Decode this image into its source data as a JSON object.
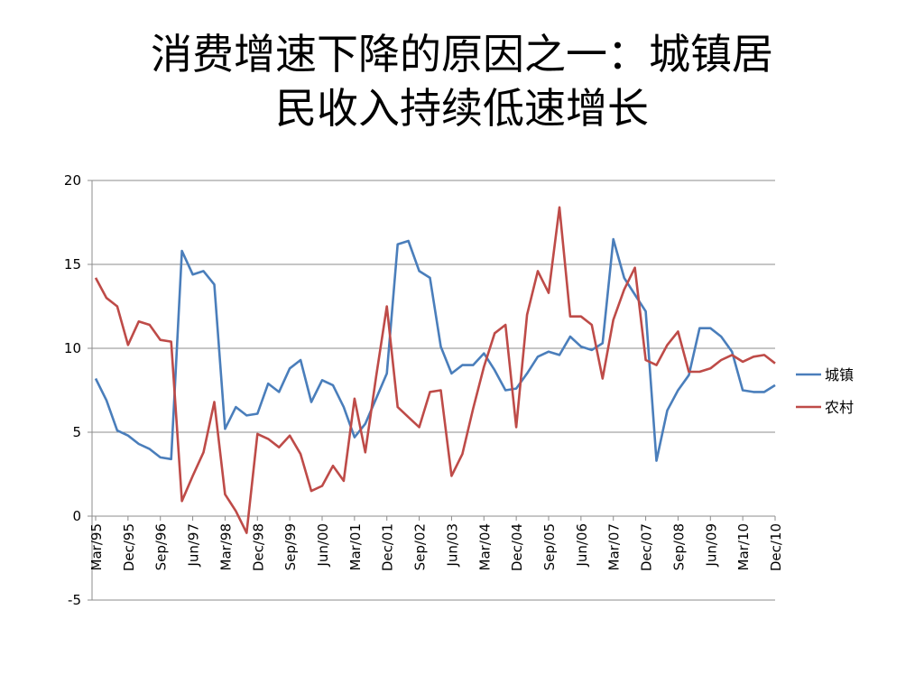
{
  "slide": {
    "title_line1": "消费增速下降的原因之一：城镇居",
    "title_line2": "民收入持续低速增长"
  },
  "chart_data": {
    "type": "line",
    "ylim": [
      -5,
      20
    ],
    "yticks": [
      -5,
      0,
      5,
      10,
      15,
      20
    ],
    "grid": true,
    "legend_position": "right",
    "x": [
      "Mar/95",
      "Jun/95",
      "Sep/95",
      "Dec/95",
      "Mar/96",
      "Jun/96",
      "Sep/96",
      "Dec/96",
      "Mar/97",
      "Jun/97",
      "Sep/97",
      "Dec/97",
      "Mar/98",
      "Jun/98",
      "Sep/98",
      "Dec/98",
      "Mar/99",
      "Jun/99",
      "Sep/99",
      "Dec/99",
      "Mar/00",
      "Jun/00",
      "Sep/00",
      "Dec/00",
      "Mar/01",
      "Jun/01",
      "Sep/01",
      "Dec/01",
      "Mar/02",
      "Jun/02",
      "Sep/02",
      "Dec/02",
      "Mar/03",
      "Jun/03",
      "Sep/03",
      "Dec/03",
      "Mar/04",
      "Jun/04",
      "Sep/04",
      "Dec/04",
      "Mar/05",
      "Jun/05",
      "Sep/05",
      "Dec/05",
      "Mar/06",
      "Jun/06",
      "Sep/06",
      "Dec/06",
      "Mar/07",
      "Jun/07",
      "Sep/07",
      "Dec/07",
      "Mar/08",
      "Jun/08",
      "Sep/08",
      "Dec/08",
      "Mar/09",
      "Jun/09",
      "Sep/09",
      "Dec/09",
      "Mar/10",
      "Jun/10",
      "Sep/10",
      "Dec/10"
    ],
    "x_tick_labels": [
      "Mar/95",
      "Dec/95",
      "Sep/96",
      "Jun/97",
      "Mar/98",
      "Dec/98",
      "Sep/99",
      "Jun/00",
      "Mar/01",
      "Dec/01",
      "Sep/02",
      "Jun/03",
      "Mar/04",
      "Dec/04",
      "Sep/05",
      "Jun/06",
      "Mar/07",
      "Dec/07",
      "Sep/08",
      "Jun/09",
      "Mar/10",
      "Dec/10"
    ],
    "series": [
      {
        "name": "城镇",
        "color": "#4a7ebb",
        "values": [
          8.2,
          6.9,
          5.1,
          4.8,
          4.3,
          4.0,
          3.5,
          3.4,
          15.8,
          14.4,
          14.6,
          13.8,
          5.2,
          6.5,
          6.0,
          6.1,
          7.9,
          7.4,
          8.8,
          9.3,
          6.8,
          8.1,
          7.8,
          6.5,
          4.7,
          5.5,
          7.0,
          8.5,
          16.2,
          16.4,
          14.6,
          14.2,
          10.1,
          8.5,
          9.0,
          9.0,
          9.7,
          8.7,
          7.5,
          7.6,
          8.5,
          9.5,
          9.8,
          9.6,
          10.7,
          10.1,
          9.9,
          10.3,
          16.5,
          14.2,
          13.2,
          12.2,
          3.3,
          6.3,
          7.5,
          8.4,
          11.2,
          11.2,
          10.7,
          9.8,
          7.5,
          7.4,
          7.4,
          7.8
        ]
      },
      {
        "name": "农村",
        "color": "#be4b48",
        "values": [
          14.2,
          13.0,
          12.5,
          10.2,
          11.6,
          11.4,
          10.5,
          10.4,
          0.9,
          2.4,
          3.8,
          6.8,
          1.3,
          0.3,
          -1.0,
          4.9,
          4.6,
          4.1,
          4.8,
          3.7,
          1.5,
          1.8,
          3.0,
          2.1,
          7.0,
          3.8,
          8.3,
          12.5,
          6.5,
          5.9,
          5.3,
          7.4,
          7.5,
          2.4,
          3.7,
          6.4,
          8.9,
          10.9,
          11.4,
          5.3,
          12.0,
          14.6,
          13.3,
          18.4,
          11.9,
          11.9,
          11.4,
          8.2,
          11.7,
          13.5,
          14.8,
          9.3,
          9.0,
          10.2,
          11.0,
          8.6,
          8.6,
          8.8,
          9.3,
          9.6,
          9.2,
          9.5,
          9.6,
          9.1
        ]
      }
    ]
  }
}
